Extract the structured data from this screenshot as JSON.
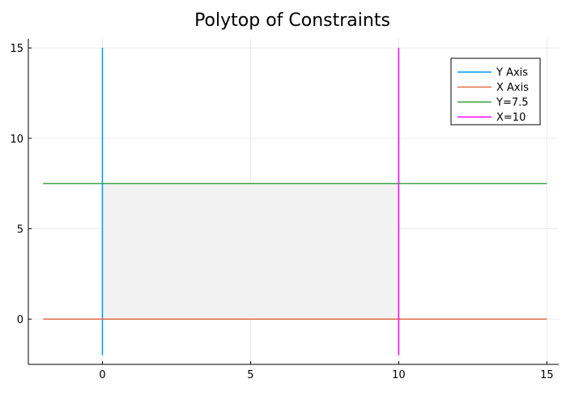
{
  "chart_data": {
    "type": "line",
    "title": "Polytop of Constraints",
    "xlabel": "",
    "ylabel": "",
    "xlim": [
      -2.5,
      15.4
    ],
    "ylim": [
      -2.5,
      15.5
    ],
    "xticks": [
      0,
      5,
      10,
      15
    ],
    "yticks": [
      0,
      5,
      10,
      15
    ],
    "xtick_labels": [
      "0",
      "5",
      "10",
      "15"
    ],
    "ytick_labels": [
      "0",
      "5",
      "10",
      "15"
    ],
    "grid": true,
    "legend_position": "top-right",
    "series": [
      {
        "name": "Y Axis",
        "color": "#009af9",
        "x": [
          0,
          0
        ],
        "y": [
          -2,
          15
        ]
      },
      {
        "name": "X Axis",
        "color": "#e26f46",
        "x": [
          -2,
          15
        ],
        "y": [
          0,
          0
        ]
      },
      {
        "name": "Y=7.5",
        "color": "#3da44d",
        "x": [
          -2,
          15
        ],
        "y": [
          7.5,
          7.5
        ]
      },
      {
        "name": "X=10",
        "color": "#ff00ff",
        "x": [
          10,
          10
        ],
        "y": [
          -2,
          15
        ]
      }
    ],
    "feasible_region": {
      "x": [
        0,
        10,
        10,
        0
      ],
      "y": [
        0,
        0,
        7.5,
        7.5
      ],
      "fill": "#f2f2f2",
      "stroke": "#666666"
    }
  }
}
